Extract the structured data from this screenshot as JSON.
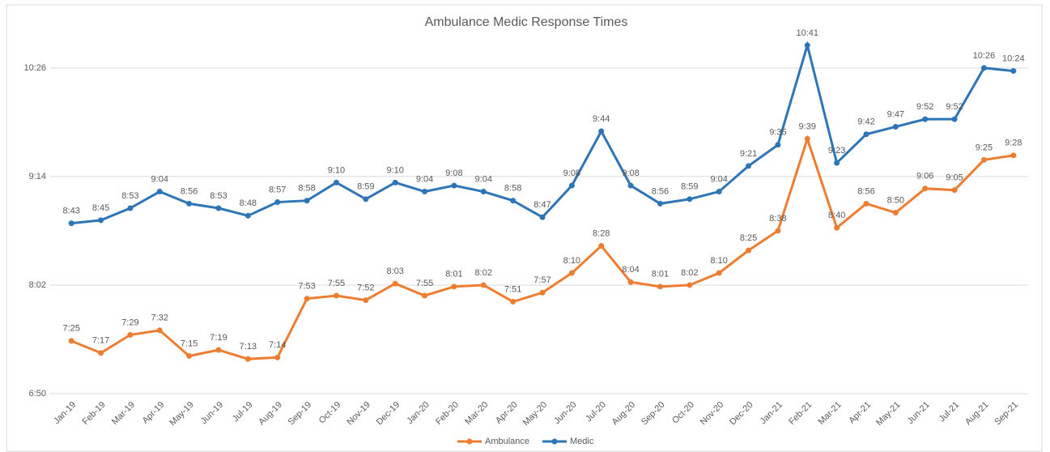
{
  "chart_data": {
    "type": "line",
    "title": "Ambulance Medic Response Times",
    "categories": [
      "Jan-19",
      "Feb-19",
      "Mar-19",
      "Apr-19",
      "May-19",
      "Jun-19",
      "Jul-19",
      "Aug-19",
      "Sep-19",
      "Oct-19",
      "Nov-19",
      "Dec-19",
      "Jan-20",
      "Feb-20",
      "Mar-20",
      "Apr-20",
      "May-20",
      "Jun-20",
      "Jul-20",
      "Aug-20",
      "Sep-20",
      "Oct-20",
      "Nov-20",
      "Dec-20",
      "Jan-21",
      "Feb-21",
      "Mar-21",
      "Apr-21",
      "May-21",
      "Jun-21",
      "Jul-21",
      "Aug-21",
      "Sep-21"
    ],
    "series": [
      {
        "name": "Ambulance",
        "color": "#ed7d31",
        "values": [
          445,
          437,
          449,
          452,
          435,
          439,
          433,
          434,
          473,
          475,
          472,
          483,
          475,
          481,
          482,
          471,
          477,
          490,
          508,
          484,
          481,
          482,
          490,
          505,
          518,
          579,
          520,
          536,
          530,
          546,
          545,
          565,
          568
        ],
        "value_labels": [
          "7:25",
          "7:17",
          "7:29",
          "7:32",
          "7:15",
          "7:19",
          "7:13",
          "7:14",
          "7:53",
          "7:55",
          "7:52",
          "8:03",
          "7:55",
          "8:01",
          "8:02",
          "7:51",
          "7:57",
          "8:10",
          "8:28",
          "8:04",
          "8:01",
          "8:02",
          "8:10",
          "8:25",
          "8:38",
          "9:39",
          "8:40",
          "8:56",
          "8:50",
          "9:06",
          "9:05",
          "9:25",
          "9:28"
        ]
      },
      {
        "name": "Medic",
        "color": "#2e75b6",
        "values": [
          523,
          525,
          533,
          544,
          536,
          533,
          528,
          537,
          538,
          550,
          539,
          550,
          544,
          548,
          544,
          538,
          527,
          548,
          584,
          548,
          536,
          539,
          544,
          561,
          575,
          641,
          563,
          582,
          587,
          592,
          592,
          626,
          624
        ],
        "value_labels": [
          "8:43",
          "8:45",
          "8:53",
          "9:04",
          "8:56",
          "8:53",
          "8:48",
          "8:57",
          "8:58",
          "9:10",
          "8:59",
          "9:10",
          "9:04",
          "9:08",
          "9:04",
          "8:58",
          "8:47",
          "9:08",
          "9:44",
          "9:08",
          "8:56",
          "8:59",
          "9:04",
          "9:21",
          "9:35",
          "10:41",
          "9:23",
          "9:42",
          "9:47",
          "9:52",
          "9:52",
          "10:26",
          "10:24"
        ]
      }
    ],
    "ylim": [
      410,
      656
    ],
    "yticks": [
      {
        "value": 410,
        "label": "6:50"
      },
      {
        "value": 482,
        "label": "8:02"
      },
      {
        "value": 554,
        "label": "9:14"
      },
      {
        "value": 626,
        "label": "10:26"
      }
    ],
    "grid": true,
    "legend": "bottom"
  }
}
